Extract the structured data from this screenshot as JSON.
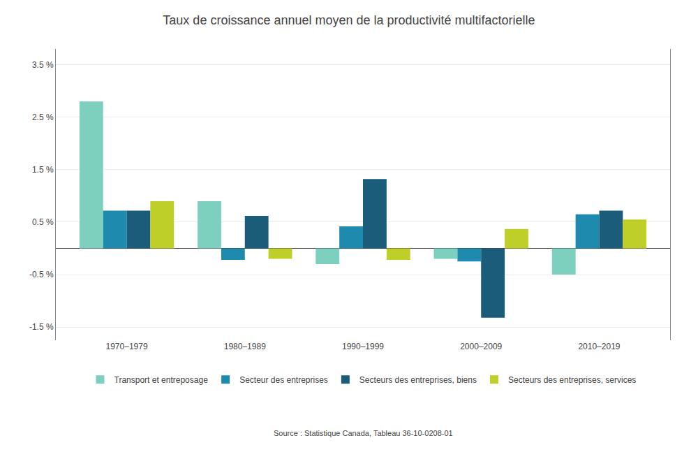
{
  "chart_data": {
    "type": "bar",
    "title": "Taux de croissance annuel moyen de la productivité multifactorielle",
    "categories": [
      "1970–1979",
      "1980–1989",
      "1990–1999",
      "2000–2009",
      "2010–2019"
    ],
    "series": [
      {
        "name": "Transport et entreposage",
        "color": "#7DCFBE",
        "values": [
          2.8,
          0.9,
          -0.3,
          -0.2,
          -0.5
        ]
      },
      {
        "name": "Secteur des entreprises",
        "color": "#1E8BAE",
        "values": [
          0.72,
          -0.22,
          0.42,
          -0.25,
          0.65
        ]
      },
      {
        "name": "Secteurs des entreprises, biens",
        "color": "#1A5C7A",
        "values": [
          0.72,
          0.62,
          1.32,
          -1.32,
          0.72
        ]
      },
      {
        "name": "Secteurs des entreprises, services",
        "color": "#BFCF2A",
        "values": [
          0.9,
          -0.2,
          -0.22,
          0.37,
          0.55
        ]
      }
    ],
    "ylim": [
      -1.75,
      3.8
    ],
    "yticks": [
      {
        "value": -1.5,
        "label": "-1.5 %"
      },
      {
        "value": -0.5,
        "label": "-0.5 %"
      },
      {
        "value": 0.5,
        "label": "0.5 %"
      },
      {
        "value": 1.5,
        "label": "1.5 %"
      },
      {
        "value": 2.5,
        "label": "2.5 %"
      },
      {
        "value": 3.5,
        "label": "3.5 %"
      }
    ],
    "grid": true,
    "legend": "bottom",
    "annotations": [
      "Source : Statistique Canada, Tableau 36-10-0208-01"
    ]
  }
}
